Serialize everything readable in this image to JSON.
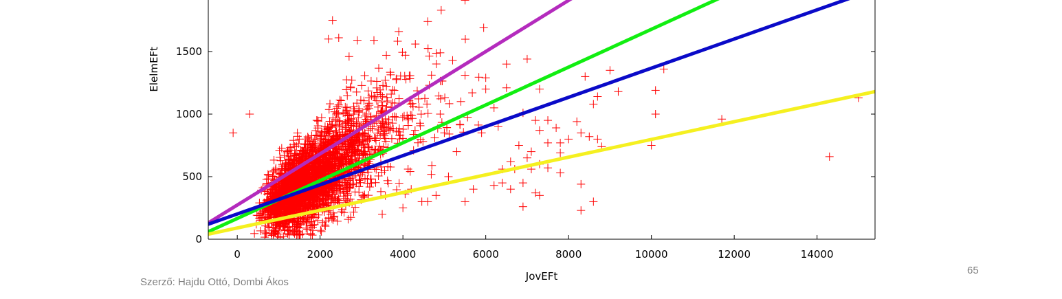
{
  "footer": {
    "author": "Szerző: Hajdu Ottó, Dombi Ákos",
    "page_number": "65"
  },
  "chart_data": {
    "type": "scatter",
    "title": "",
    "xlabel": "JovEFt",
    "ylabel": "ElelmEFt",
    "xlim": [
      -700,
      15400
    ],
    "ylim": [
      0,
      1900
    ],
    "xticks": [
      0,
      2000,
      4000,
      6000,
      8000,
      10000,
      12000,
      14000
    ],
    "yticks": [
      0,
      500,
      1000,
      1500
    ],
    "xtick_labels": [
      "0",
      "2000",
      "4000",
      "6000",
      "8000",
      "10000",
      "12000",
      "14000"
    ],
    "ytick_labels": [
      "0",
      "500",
      "1000",
      "1500"
    ],
    "grid": false,
    "scatter": {
      "marker": "+",
      "color": "#ff0000",
      "cluster": {
        "center_x": 1800,
        "center_y": 420,
        "approx_count": 3000
      },
      "points": [
        [
          -100,
          850
        ],
        [
          300,
          1000
        ],
        [
          2300,
          1750
        ],
        [
          2200,
          1600
        ],
        [
          2450,
          1610
        ],
        [
          2700,
          1460
        ],
        [
          2900,
          1590
        ],
        [
          3300,
          1590
        ],
        [
          3900,
          1660
        ],
        [
          3600,
          1470
        ],
        [
          4600,
          1740
        ],
        [
          5500,
          1910
        ],
        [
          5950,
          1690
        ],
        [
          4300,
          1560
        ],
        [
          4900,
          1490
        ],
        [
          5200,
          1430
        ],
        [
          6500,
          1400
        ],
        [
          7000,
          1440
        ],
        [
          5500,
          1310
        ],
        [
          6000,
          1290
        ],
        [
          6500,
          1210
        ],
        [
          6000,
          1200
        ],
        [
          7300,
          1200
        ],
        [
          8400,
          1300
        ],
        [
          8700,
          1140
        ],
        [
          8600,
          1080
        ],
        [
          9000,
          1350
        ],
        [
          9200,
          1180
        ],
        [
          10100,
          1190
        ],
        [
          10300,
          1360
        ],
        [
          10100,
          1000
        ],
        [
          6900,
          1010
        ],
        [
          7200,
          950
        ],
        [
          7500,
          950
        ],
        [
          7300,
          870
        ],
        [
          7700,
          890
        ],
        [
          8200,
          940
        ],
        [
          8300,
          850
        ],
        [
          8500,
          820
        ],
        [
          8800,
          740
        ],
        [
          8700,
          800
        ],
        [
          7800,
          770
        ],
        [
          8000,
          800
        ],
        [
          7500,
          770
        ],
        [
          6800,
          750
        ],
        [
          7100,
          700
        ],
        [
          7800,
          690
        ],
        [
          7000,
          650
        ],
        [
          6600,
          620
        ],
        [
          7300,
          600
        ],
        [
          6400,
          560
        ],
        [
          6700,
          560
        ],
        [
          7100,
          560
        ],
        [
          7500,
          570
        ],
        [
          7800,
          530
        ],
        [
          6400,
          450
        ],
        [
          6900,
          450
        ],
        [
          6200,
          430
        ],
        [
          6600,
          400
        ],
        [
          7200,
          370
        ],
        [
          7300,
          350
        ],
        [
          6900,
          260
        ],
        [
          8300,
          440
        ],
        [
          8600,
          300
        ],
        [
          8300,
          230
        ],
        [
          10000,
          750
        ],
        [
          11700,
          960
        ],
        [
          14300,
          660
        ],
        [
          15000,
          1130
        ],
        [
          5500,
          300
        ],
        [
          5700,
          400
        ],
        [
          4800,
          350
        ],
        [
          4200,
          400
        ],
        [
          5100,
          500
        ],
        [
          5900,
          850
        ],
        [
          6300,
          900
        ],
        [
          6200,
          1050
        ],
        [
          5400,
          1100
        ],
        [
          4900,
          1000
        ],
        [
          5000,
          850
        ],
        [
          5300,
          700
        ],
        [
          4600,
          300
        ],
        [
          4000,
          250
        ],
        [
          3500,
          200
        ]
      ]
    },
    "lines": [
      {
        "color": "#b42bbd",
        "x": [
          -700,
          8200
        ],
        "y": [
          130,
          1950
        ]
      },
      {
        "color": "#11ee11",
        "x": [
          -700,
          11800
        ],
        "y": [
          60,
          1950
        ]
      },
      {
        "color": "#0a0ac8",
        "x": [
          -700,
          15000
        ],
        "y": [
          120,
          1950
        ]
      },
      {
        "color": "#f5f020",
        "x": [
          -700,
          15400
        ],
        "y": [
          40,
          1180
        ]
      }
    ]
  }
}
